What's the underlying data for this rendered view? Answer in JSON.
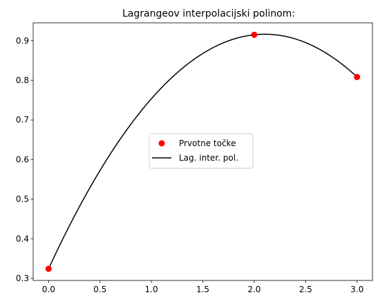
{
  "chart_data": {
    "type": "line",
    "title": "Lagrangeov interpolacijski polinom:",
    "xlabel": "",
    "ylabel": "",
    "xlim": [
      -0.15,
      3.15
    ],
    "ylim": [
      0.295,
      0.945
    ],
    "xticks": [
      0.0,
      0.5,
      1.0,
      1.5,
      2.0,
      2.5,
      3.0
    ],
    "xtick_labels": [
      "0.0",
      "0.5",
      "1.0",
      "1.5",
      "2.0",
      "2.5",
      "3.0"
    ],
    "yticks": [
      0.3,
      0.4,
      0.5,
      0.6,
      0.7,
      0.8,
      0.9
    ],
    "ytick_labels": [
      "0.3",
      "0.4",
      "0.5",
      "0.6",
      "0.7",
      "0.8",
      "0.9"
    ],
    "grid": false,
    "legend_position": "center",
    "series": [
      {
        "name": "Prvotne točke",
        "kind": "scatter",
        "color": "#ff0000",
        "x": [
          0,
          2,
          3
        ],
        "y": [
          0.3244,
          0.9149,
          0.8084
        ]
      },
      {
        "name": "Lag. inter. pol.",
        "kind": "line",
        "color": "#000000",
        "polynomial": "interpolates the three points",
        "x_range": [
          0,
          3
        ]
      }
    ]
  }
}
